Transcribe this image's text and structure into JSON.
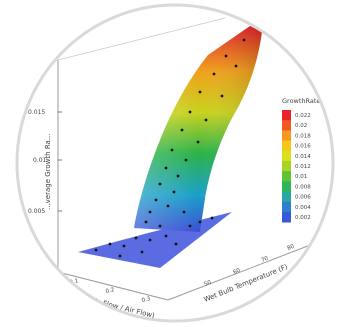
{
  "chart_data": {
    "type": "surface",
    "title": "",
    "zlabel": "...verage Growth Ra...",
    "xlabel": "...elic Flow / Air Flow)",
    "ylabel": "Wet Bulb Temperature (F)",
    "z_ticks": [
      "0.015",
      "0.01",
      "0.005"
    ],
    "x_ticks": [
      "0.1",
      "0.2",
      "0.3"
    ],
    "y_ticks": [
      "50",
      "60",
      "70",
      "80"
    ],
    "legend": {
      "title": "GrowthRate",
      "placement": "right",
      "entries": [
        "0.022",
        "0.02",
        "0.018",
        "0.016",
        "0.014",
        "0.012",
        "0.01",
        "0.008",
        "0.006",
        "0.004",
        "0.002"
      ],
      "colors": [
        "#e8232a",
        "#ee5a22",
        "#f59a1e",
        "#f5c71a",
        "#d9e11b",
        "#a6d523",
        "#5fc332",
        "#2fb55a",
        "#2aa7a0",
        "#2d7fd2",
        "#3659d8"
      ]
    },
    "surface_color_scale": [
      "#3c4fd6",
      "#1aa0c8",
      "#2bb24a",
      "#c8d21e",
      "#f0a01a",
      "#e8232a"
    ]
  }
}
